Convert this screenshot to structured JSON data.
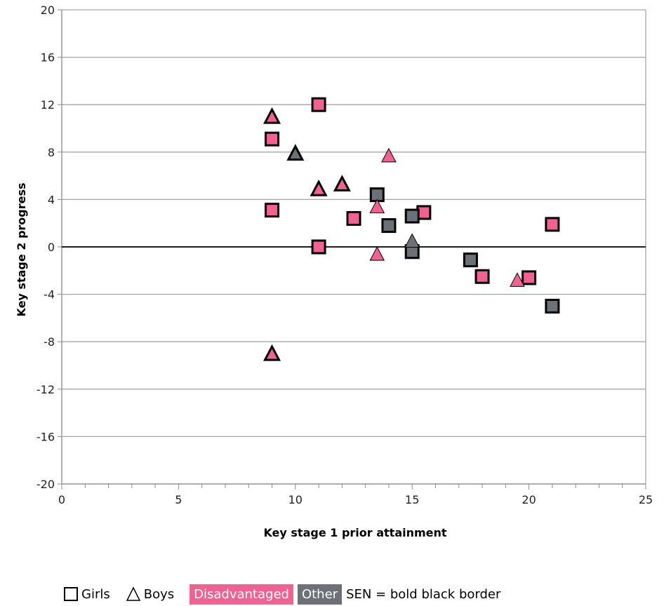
{
  "chart_data": {
    "type": "scatter",
    "xlabel": "Key stage 1 prior attainment",
    "ylabel": "Key stage 2 progress",
    "xlim": [
      0,
      25
    ],
    "ylim": [
      -20,
      20
    ],
    "x_ticks": [
      0,
      5,
      10,
      15,
      20,
      25
    ],
    "y_ticks": [
      -20,
      -16,
      -12,
      -8,
      -4,
      0,
      4,
      8,
      12,
      16,
      20
    ],
    "grid": true,
    "zero_line": true,
    "colors": {
      "disadvantaged": "#f06292",
      "other": "#6b7177",
      "border": "#000000"
    },
    "points": [
      {
        "x": 9,
        "y": 9.1,
        "shape": "square",
        "group": "disadvantaged",
        "sen": true
      },
      {
        "x": 9,
        "y": 3.1,
        "shape": "square",
        "group": "disadvantaged",
        "sen": true
      },
      {
        "x": 11,
        "y": 12,
        "shape": "square",
        "group": "disadvantaged",
        "sen": true
      },
      {
        "x": 11,
        "y": 0,
        "shape": "square",
        "group": "disadvantaged",
        "sen": true
      },
      {
        "x": 12.5,
        "y": 2.4,
        "shape": "square",
        "group": "disadvantaged",
        "sen": true
      },
      {
        "x": 15.5,
        "y": 2.9,
        "shape": "square",
        "group": "disadvantaged",
        "sen": true
      },
      {
        "x": 18,
        "y": -2.5,
        "shape": "square",
        "group": "disadvantaged",
        "sen": true
      },
      {
        "x": 20,
        "y": -2.6,
        "shape": "square",
        "group": "disadvantaged",
        "sen": true
      },
      {
        "x": 21,
        "y": 1.9,
        "shape": "square",
        "group": "disadvantaged",
        "sen": true
      },
      {
        "x": 13.5,
        "y": 4.4,
        "shape": "square",
        "group": "other",
        "sen": true
      },
      {
        "x": 14,
        "y": 1.8,
        "shape": "square",
        "group": "other",
        "sen": true
      },
      {
        "x": 15,
        "y": 2.6,
        "shape": "square",
        "group": "other",
        "sen": true
      },
      {
        "x": 15,
        "y": -0.4,
        "shape": "square",
        "group": "other",
        "sen": true
      },
      {
        "x": 17.5,
        "y": -1.1,
        "shape": "square",
        "group": "other",
        "sen": true
      },
      {
        "x": 21,
        "y": -5,
        "shape": "square",
        "group": "other",
        "sen": true
      },
      {
        "x": 9,
        "y": 11,
        "shape": "triangle",
        "group": "disadvantaged",
        "sen": true
      },
      {
        "x": 9,
        "y": -9,
        "shape": "triangle",
        "group": "disadvantaged",
        "sen": true
      },
      {
        "x": 11,
        "y": 4.9,
        "shape": "triangle",
        "group": "disadvantaged",
        "sen": true
      },
      {
        "x": 12,
        "y": 5.3,
        "shape": "triangle",
        "group": "disadvantaged",
        "sen": true
      },
      {
        "x": 13.5,
        "y": 3.4,
        "shape": "triangle",
        "group": "disadvantaged",
        "sen": false
      },
      {
        "x": 13.5,
        "y": -0.6,
        "shape": "triangle",
        "group": "disadvantaged",
        "sen": false
      },
      {
        "x": 14,
        "y": 7.7,
        "shape": "triangle",
        "group": "disadvantaged",
        "sen": false
      },
      {
        "x": 19.5,
        "y": -2.8,
        "shape": "triangle",
        "group": "disadvantaged",
        "sen": false
      },
      {
        "x": 10,
        "y": 7.9,
        "shape": "triangle",
        "group": "other",
        "sen": true
      },
      {
        "x": 15,
        "y": 0.5,
        "shape": "triangle",
        "group": "other",
        "sen": false
      }
    ]
  },
  "legend": {
    "girls": "Girls",
    "boys": "Boys",
    "disadvantaged": "Disadvantaged",
    "other": "Other",
    "sen_note": "SEN = bold black border"
  }
}
